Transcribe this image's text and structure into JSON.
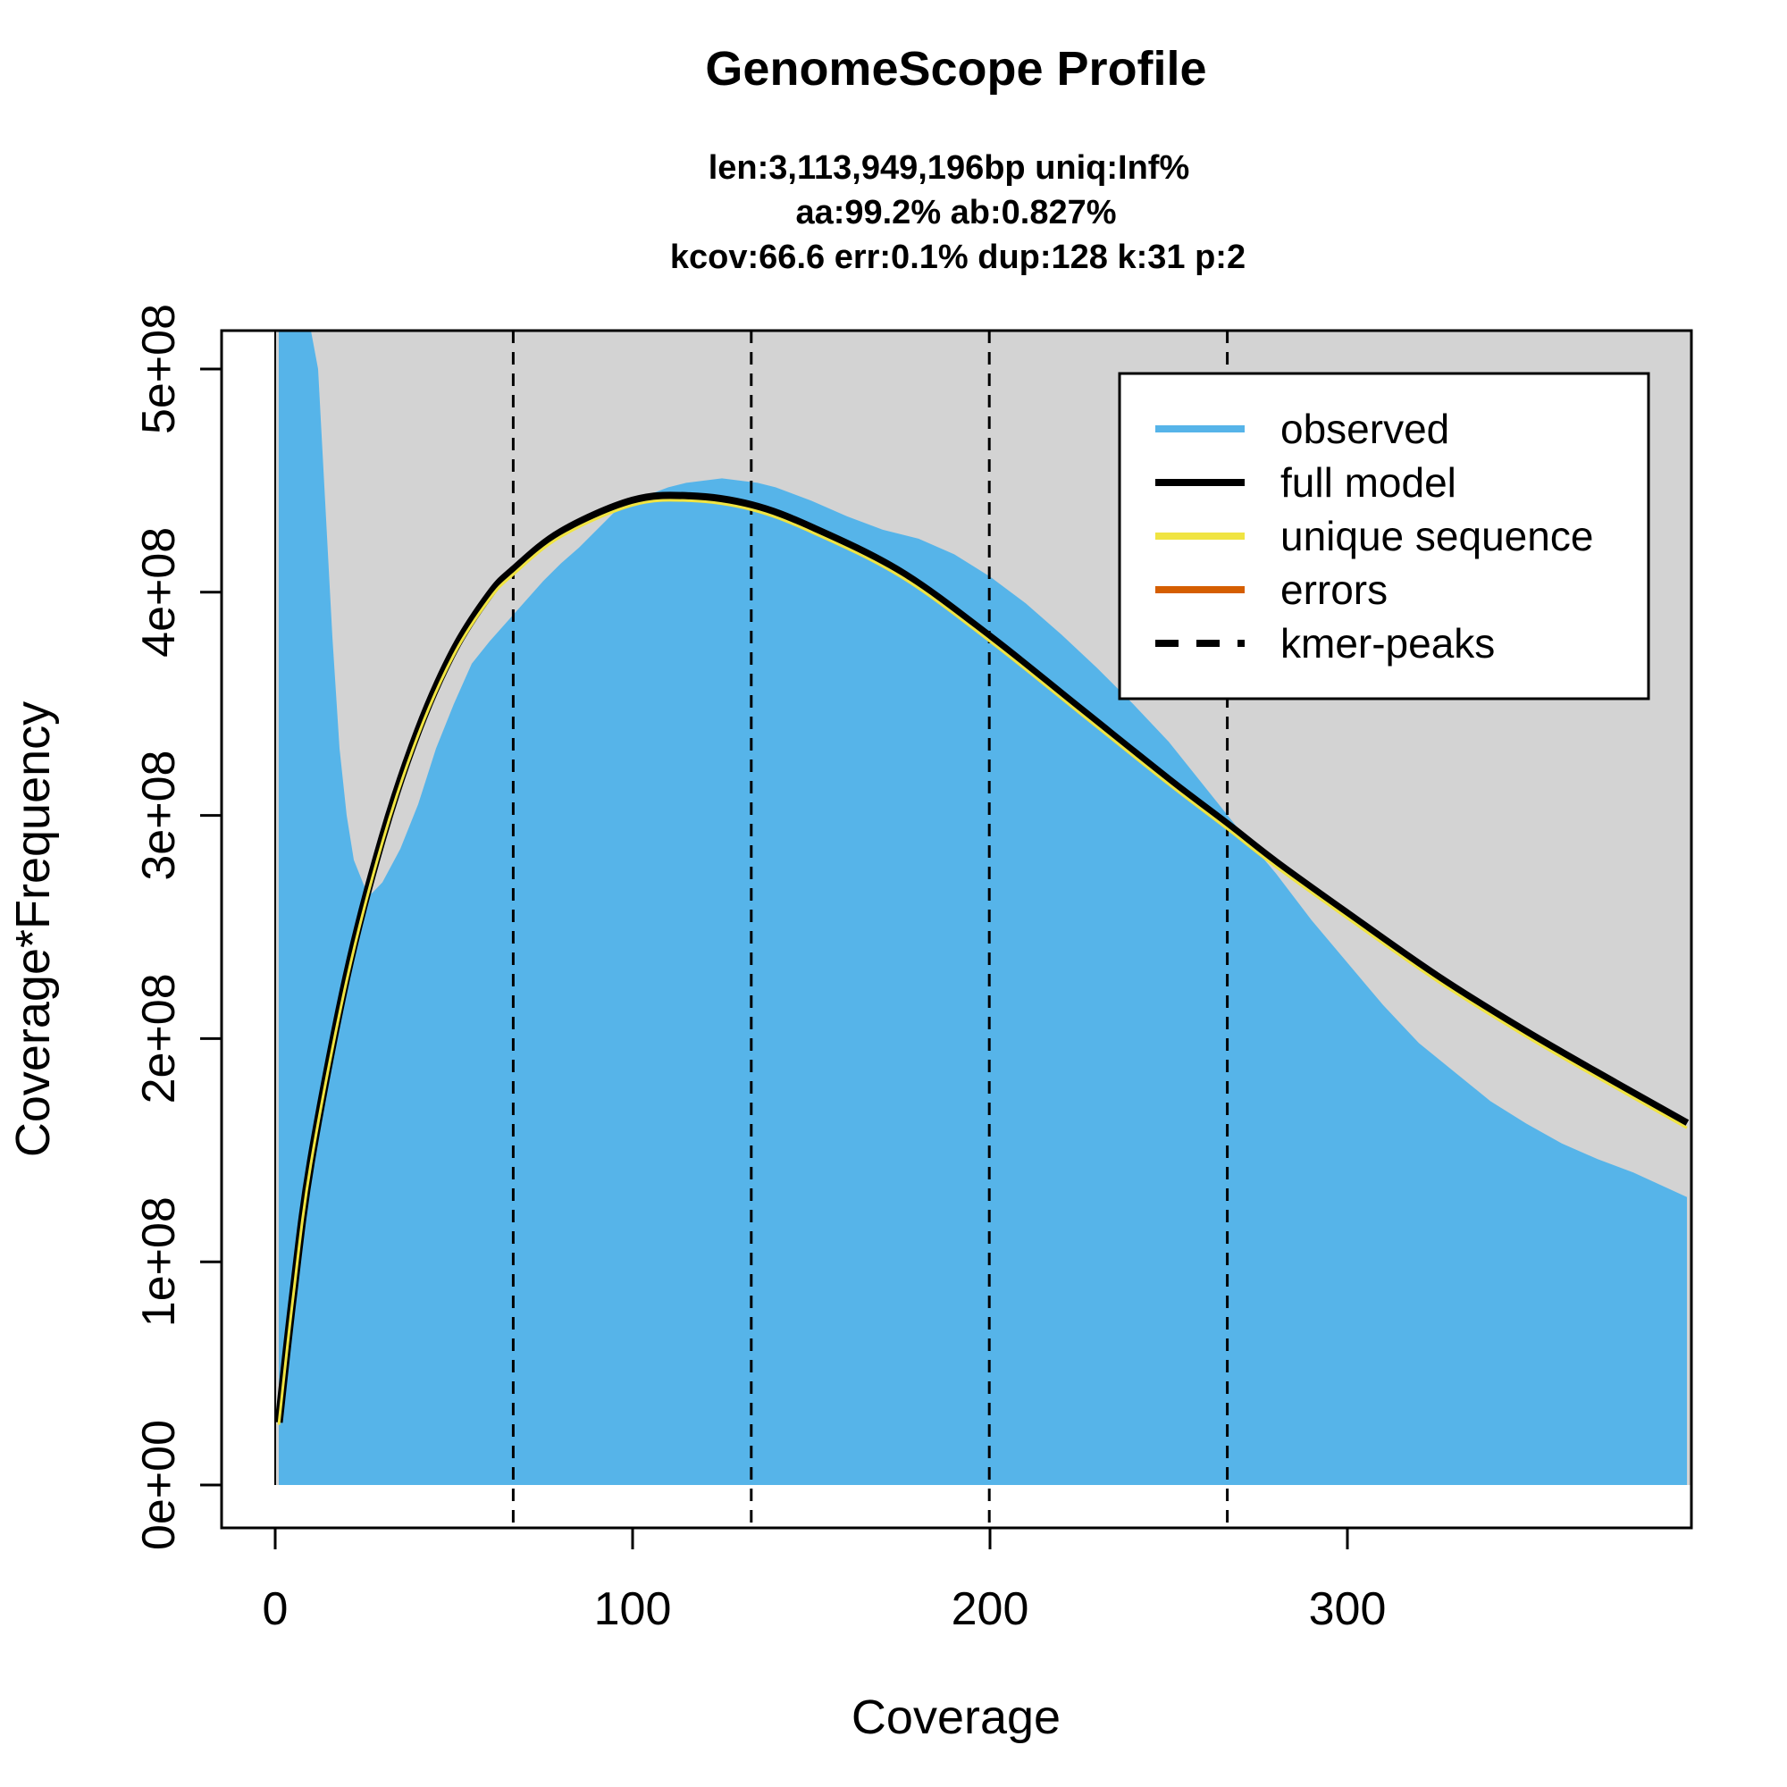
{
  "chart_data": {
    "type": "area",
    "title": "GenomeScope Profile",
    "subtitle_lines": [
      "len:3,113,949,196bp uniq:Inf%",
      "aa:99.2% ab:0.827%",
      "kcov:66.6 err:0.1%  dup:128  k:31 p:2"
    ],
    "xlabel": "Coverage",
    "ylabel": "Coverage*Frequency",
    "xlim": [
      0,
      395
    ],
    "ylim": [
      0,
      520000000
    ],
    "x_ticks": [
      0,
      100,
      200,
      300
    ],
    "x_tick_labels": [
      "0",
      "100",
      "200",
      "300"
    ],
    "y_ticks": [
      0,
      100000000,
      200000000,
      300000000,
      400000000,
      500000000
    ],
    "y_tick_labels": [
      "0e+00",
      "1e+08",
      "2e+08",
      "3e+08",
      "4e+08",
      "5e+08"
    ],
    "kmer_peaks": [
      66.6,
      133.2,
      199.8,
      266.4
    ],
    "colors": {
      "observed": "#56B4E9",
      "full_model": "#000000",
      "unique_sequence": "#F0E442",
      "errors": "#D55E00",
      "background": "#D3D3D3"
    },
    "legend": {
      "position": "top-right",
      "entries": [
        {
          "label": "observed",
          "color": "#56B4E9",
          "style": "solid"
        },
        {
          "label": "full model",
          "color": "#000000",
          "style": "solid"
        },
        {
          "label": "unique sequence",
          "color": "#F0E442",
          "style": "solid"
        },
        {
          "label": "errors",
          "color": "#D55E00",
          "style": "solid"
        },
        {
          "label": "kmer-peaks",
          "color": "#000000",
          "style": "dashed"
        }
      ]
    },
    "series": [
      {
        "name": "observed",
        "x": [
          1,
          5,
          9,
          10,
          12,
          14,
          16,
          18,
          20,
          22,
          25,
          27,
          30,
          35,
          40,
          45,
          50,
          55,
          60,
          65,
          70,
          75,
          80,
          85,
          90,
          95,
          100,
          105,
          110,
          115,
          120,
          125,
          130,
          135,
          140,
          150,
          160,
          170,
          180,
          190,
          200,
          210,
          220,
          230,
          240,
          250,
          260,
          270,
          280,
          290,
          300,
          310,
          320,
          330,
          340,
          350,
          360,
          370,
          380,
          395
        ],
        "y": [
          520000000,
          520000000,
          520000000,
          520000000,
          500000000,
          440000000,
          380000000,
          330000000,
          300000000,
          280000000,
          268000000,
          265000000,
          270000000,
          285000000,
          305000000,
          330000000,
          350000000,
          368000000,
          378000000,
          387000000,
          396000000,
          405000000,
          413000000,
          420000000,
          428000000,
          436000000,
          441000000,
          444000000,
          447000000,
          449000000,
          450000000,
          451000000,
          450000000,
          449000000,
          447000000,
          441000000,
          434000000,
          428000000,
          424000000,
          417000000,
          407000000,
          395000000,
          381000000,
          366000000,
          350000000,
          333000000,
          313000000,
          293000000,
          274000000,
          253000000,
          234000000,
          215000000,
          198000000,
          185000000,
          172000000,
          162000000,
          153000000,
          146000000,
          140000000,
          129000000
        ]
      },
      {
        "name": "full model",
        "x": [
          1,
          5,
          10,
          20,
          30,
          40,
          50,
          60,
          66.6,
          80,
          100,
          116,
          133.2,
          150,
          175,
          200,
          225,
          250,
          266.4,
          280,
          300,
          325,
          350,
          375,
          395
        ],
        "y": [
          28000000,
          85000000,
          145000000,
          228000000,
          290000000,
          338000000,
          374000000,
          399000000,
          410000000,
          427000000,
          441000000,
          443000000,
          439000000,
          429000000,
          409000000,
          380000000,
          348000000,
          316000000,
          296000000,
          279000000,
          256000000,
          228000000,
          203000000,
          180000000,
          162000000
        ]
      },
      {
        "name": "unique sequence",
        "x": [
          1,
          5,
          10,
          20,
          30,
          40,
          50,
          60,
          66.6,
          80,
          100,
          116,
          133.2,
          150,
          175,
          200,
          225,
          250,
          266.4,
          280,
          300,
          325,
          350,
          375,
          395
        ],
        "y": [
          27000000,
          84000000,
          144000000,
          226000000,
          288000000,
          336000000,
          372000000,
          397000000,
          408000000,
          425000000,
          439000000,
          441000000,
          437000000,
          427000000,
          407000000,
          378000000,
          346000000,
          314000000,
          294000000,
          277000000,
          254000000,
          226000000,
          201000000,
          178000000,
          160000000
        ]
      }
    ]
  }
}
